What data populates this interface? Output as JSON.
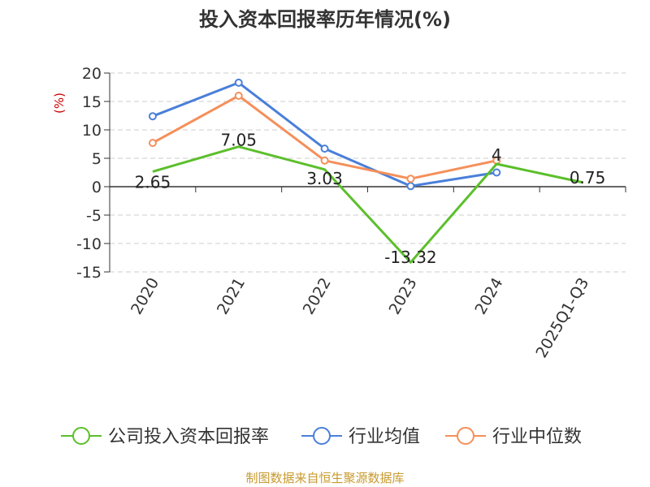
{
  "chart_data": {
    "type": "line",
    "title": "投入资本回报率历年情况(%)",
    "ylabel": "(%)",
    "ylim": [
      -15,
      20
    ],
    "yticks": [
      "20",
      "15",
      "10",
      "5",
      "0",
      "-5",
      "-10",
      "-15"
    ],
    "ytick_values": [
      20,
      15,
      10,
      5,
      0,
      -5,
      -10,
      -15
    ],
    "grid": true,
    "legend_position": "bottom",
    "categories": [
      "2020",
      "2021",
      "2022",
      "2023",
      "2024",
      "2025Q1-Q3"
    ],
    "series": [
      {
        "name": "公司投入资本回报率",
        "color": "#5bbf2b",
        "values": [
          2.65,
          7.05,
          3.03,
          -13.32,
          4,
          0.75
        ],
        "labels": [
          "2.65",
          "7.05",
          "3.03",
          "-13.32",
          "4",
          "0.75"
        ]
      },
      {
        "name": "行业均值",
        "color": "#4a7fd9",
        "values": [
          12.4,
          18.3,
          6.7,
          0.1,
          2.5,
          null
        ]
      },
      {
        "name": "行业中位数",
        "color": "#f58f5a",
        "values": [
          7.7,
          16.0,
          4.6,
          1.4,
          4.6,
          null
        ]
      }
    ]
  },
  "source": "制图数据来自恒生聚源数据库"
}
